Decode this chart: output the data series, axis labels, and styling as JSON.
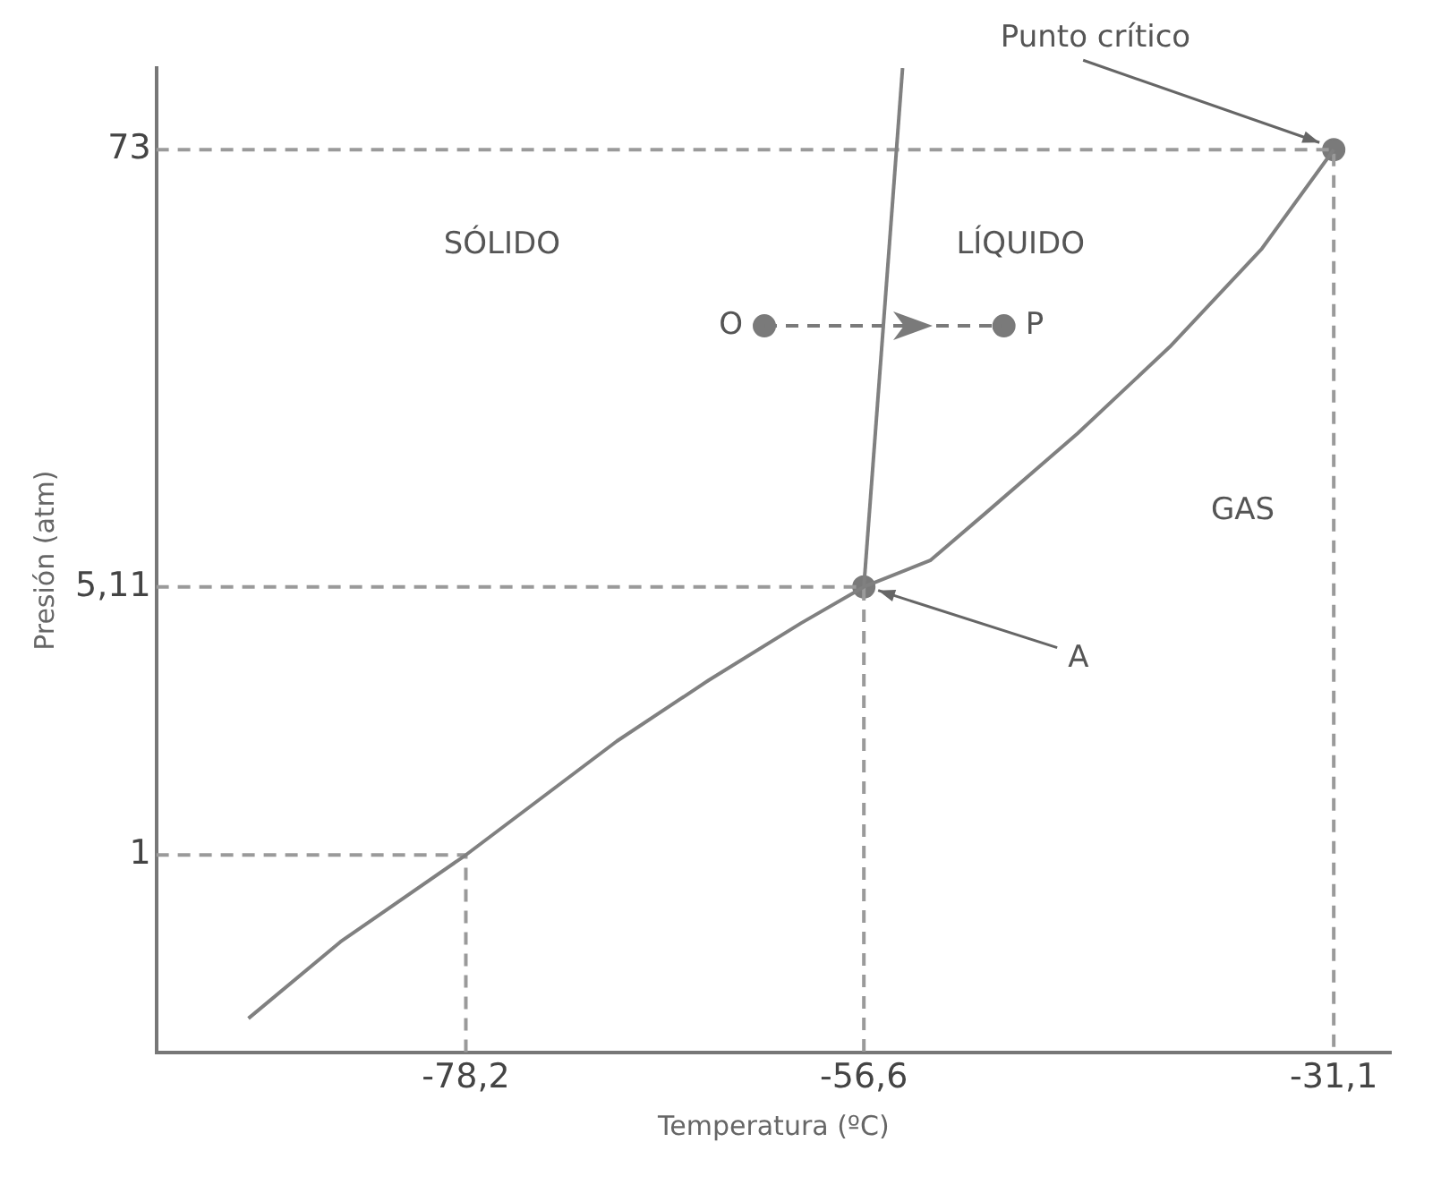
{
  "chart_data": {
    "type": "line",
    "xlabel": "Temperatura (ºC)",
    "ylabel": "Presión (atm)",
    "xlim": [
      -95,
      -28
    ],
    "ylim": [
      0.3,
      120
    ],
    "log": "y",
    "xticks": [
      {
        "value": -78.2,
        "label": "-78,2"
      },
      {
        "value": -56.6,
        "label": "-56,6"
      },
      {
        "value": -31.1,
        "label": "-31,1"
      }
    ],
    "yticks": [
      1,
      {
        "value": 5.11,
        "label": "5,11"
      },
      73
    ],
    "grid": false,
    "legend": false,
    "marker": "none",
    "line_style": "solid",
    "series": [
      {
        "type": "line",
        "color": "#808080",
        "x": [
          -90,
          -85,
          -78.2,
          -70,
          -65,
          -60,
          -56.6
        ],
        "values": [
          0.37,
          0.59,
          1,
          2,
          2.9,
          4.1,
          5.11
        ]
      },
      {
        "type": "line",
        "color": "#808080",
        "x": [
          -56.6,
          -54.5
        ],
        "values": [
          5.11,
          120
        ]
      },
      {
        "type": "line",
        "color": "#808080",
        "x": [
          -56.6,
          -53,
          -50,
          -45,
          -40,
          -35,
          -31.1
        ],
        "values": [
          5.11,
          6,
          8,
          13,
          22,
          40,
          73
        ]
      },
      {
        "type": "line",
        "color": "#9a9a9a",
        "line_style": "dashed",
        "x": [
          -95,
          -78.2,
          -78.2
        ],
        "values": [
          1,
          1,
          0.3
        ]
      },
      {
        "type": "line",
        "color": "#9a9a9a",
        "line_style": "dashed",
        "x": [
          -95,
          -56.6,
          -56.6
        ],
        "values": [
          5.11,
          5.11,
          0.3
        ]
      },
      {
        "type": "line",
        "color": "#9a9a9a",
        "line_style": "dashed",
        "x": [
          -95,
          -31.1,
          -31.1
        ],
        "values": [
          73,
          73,
          0.3
        ]
      },
      {
        "type": "line",
        "color": "#7a7a7a",
        "line_style": "dashed",
        "x": [
          -62,
          -49
        ],
        "values": [
          25,
          25
        ]
      },
      {
        "type": "scatter",
        "color": "#7a7a7a",
        "marker": "circle",
        "x": [
          -56.6,
          -31.1
        ],
        "values": [
          5.11,
          73
        ]
      },
      {
        "type": "scatter",
        "name": "O",
        "color": "#7a7a7a",
        "marker": "circle",
        "x": [
          -62
        ],
        "values": [
          25
        ]
      },
      {
        "type": "scatter",
        "name": "P",
        "color": "#7a7a7a",
        "marker": "circle",
        "x": [
          -49
        ],
        "values": [
          25
        ]
      }
    ],
    "annotations": [
      {
        "text": "Punto crítico",
        "x": -31.1,
        "y": 73
      },
      {
        "text": "A",
        "x": -56.6,
        "y": 5.11
      },
      "SÓLIDO",
      "LÍQUIDO",
      "GAS"
    ]
  }
}
